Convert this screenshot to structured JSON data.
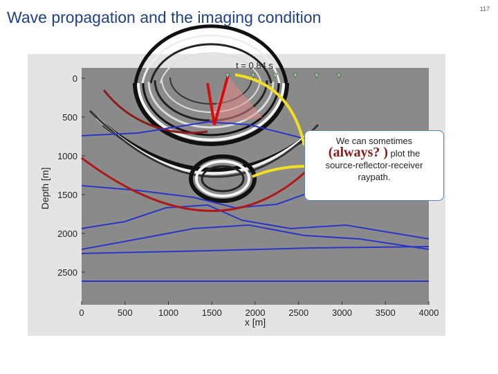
{
  "header": {
    "title": "Wave propagation and the imaging condition",
    "page_number": "117"
  },
  "figure": {
    "time_label": "t = 0.84 s",
    "y_axis": {
      "label": "Depth [m]",
      "ticks": [
        0,
        500,
        1000,
        1500,
        2000,
        2500
      ]
    },
    "x_axis": {
      "label": "x [m]",
      "ticks": [
        0,
        500,
        1000,
        1500,
        2000,
        2500,
        3000,
        3500,
        4000
      ]
    }
  },
  "callout": {
    "line1": "We can sometimes",
    "emphasis": "(always? )",
    "line2": "plot the",
    "line3": "source-reflector-receiver",
    "line4": "raypath."
  }
}
